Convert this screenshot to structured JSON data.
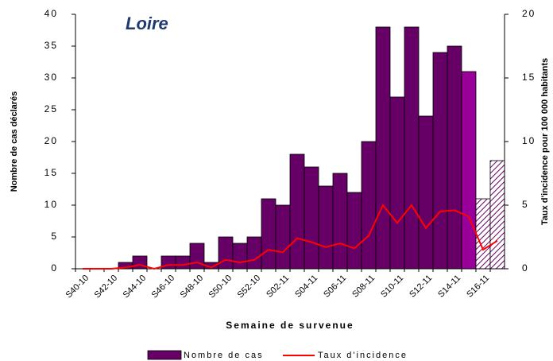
{
  "chart_data": {
    "type": "bar",
    "title": "Loire",
    "x_label": "Semaine de survenue",
    "y_label": "Nombre de cas déclarés",
    "y2_label": "Taux d'incidence pour 100 000 habitants",
    "categories": [
      "S40-10",
      null,
      "S42-10",
      null,
      "S44-10",
      null,
      "S46-10",
      null,
      "S48-10",
      null,
      "S50-10",
      null,
      "S52-10",
      null,
      "S02-11",
      null,
      "S04-11",
      null,
      "S06-11",
      null,
      "S08-11",
      null,
      "S10-11",
      null,
      "S12-11",
      null,
      "S14-11",
      null,
      "S16-11",
      null
    ],
    "series": [
      {
        "name": "Nombre de cas",
        "type": "bar",
        "color": "#660066",
        "point_colors": [
          "#660066",
          "#660066",
          "#660066",
          "#660066",
          "#660066",
          "#660066",
          "#660066",
          "#660066",
          "#660066",
          "#660066",
          "#660066",
          "#660066",
          "#660066",
          "#660066",
          "#660066",
          "#660066",
          "#660066",
          "#660066",
          "#660066",
          "#660066",
          "#660066",
          "#660066",
          "#660066",
          "#660066",
          "#660066",
          "#660066",
          "#660066",
          "#990099",
          "hatch",
          "hatch"
        ],
        "values": [
          0,
          0,
          0,
          1,
          2,
          0,
          2,
          2,
          4,
          1,
          5,
          4,
          5,
          11,
          10,
          18,
          16,
          13,
          15,
          12,
          20,
          38,
          27,
          38,
          24,
          34,
          35,
          31,
          11,
          17
        ]
      },
      {
        "name": "Taux d'incidence",
        "type": "line",
        "axis": "y2",
        "color": "#ff0000",
        "values": [
          0,
          0,
          0,
          0.1,
          0.3,
          0,
          0.3,
          0.3,
          0.5,
          0.1,
          0.7,
          0.5,
          0.7,
          1.5,
          1.3,
          2.4,
          2.1,
          1.7,
          2.0,
          1.6,
          2.6,
          5.0,
          3.6,
          5.0,
          3.2,
          4.5,
          4.6,
          4.1,
          1.5,
          2.2
        ]
      }
    ],
    "ylim": [
      0,
      40
    ],
    "yticks": [
      0,
      5,
      10,
      15,
      20,
      25,
      30,
      35,
      40
    ],
    "y2lim": [
      0,
      20
    ],
    "y2ticks": [
      0,
      5,
      10,
      15,
      20
    ],
    "grid": false,
    "legend": "bottom"
  }
}
